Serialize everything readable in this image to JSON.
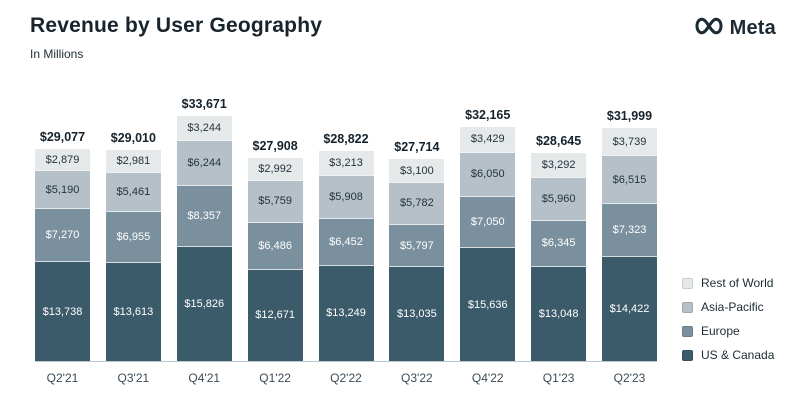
{
  "header": {
    "title": "Revenue by User Geography",
    "subtitle": "In Millions",
    "brand": "Meta"
  },
  "chart_data": {
    "type": "bar",
    "stacked": true,
    "title": "Revenue by User Geography",
    "subtitle": "In Millions",
    "value_prefix": "$",
    "grid": false,
    "legend_position": "right-bottom",
    "categories": [
      "Q2'21",
      "Q3'21",
      "Q4'21",
      "Q1'22",
      "Q2'22",
      "Q3'22",
      "Q4'22",
      "Q1'23",
      "Q2'23"
    ],
    "series": [
      {
        "name": "US & Canada",
        "color": "#3b5a6a",
        "label_color": "#ffffff",
        "values": [
          13738,
          13613,
          15826,
          12671,
          13249,
          13035,
          15636,
          13048,
          14422
        ]
      },
      {
        "name": "Europe",
        "color": "#7b909e",
        "label_color": "#ffffff",
        "values": [
          7270,
          6955,
          8357,
          6486,
          6452,
          5797,
          7050,
          6345,
          7323
        ]
      },
      {
        "name": "Asia-Pacific",
        "color": "#b5c0c8",
        "label_color": "#24333d",
        "values": [
          5190,
          5461,
          6244,
          5759,
          5908,
          5782,
          6050,
          5960,
          6515
        ]
      },
      {
        "name": "Rest of World",
        "color": "#e6e9ea",
        "label_color": "#24333d",
        "values": [
          2879,
          2981,
          3244,
          2992,
          3213,
          3100,
          3429,
          3292,
          3739
        ]
      }
    ],
    "totals": [
      29077,
      29010,
      33671,
      27908,
      28822,
      27714,
      32165,
      28645,
      31999
    ],
    "legend": [
      "Rest of World",
      "Asia-Pacific",
      "Europe",
      "US & Canada"
    ]
  }
}
